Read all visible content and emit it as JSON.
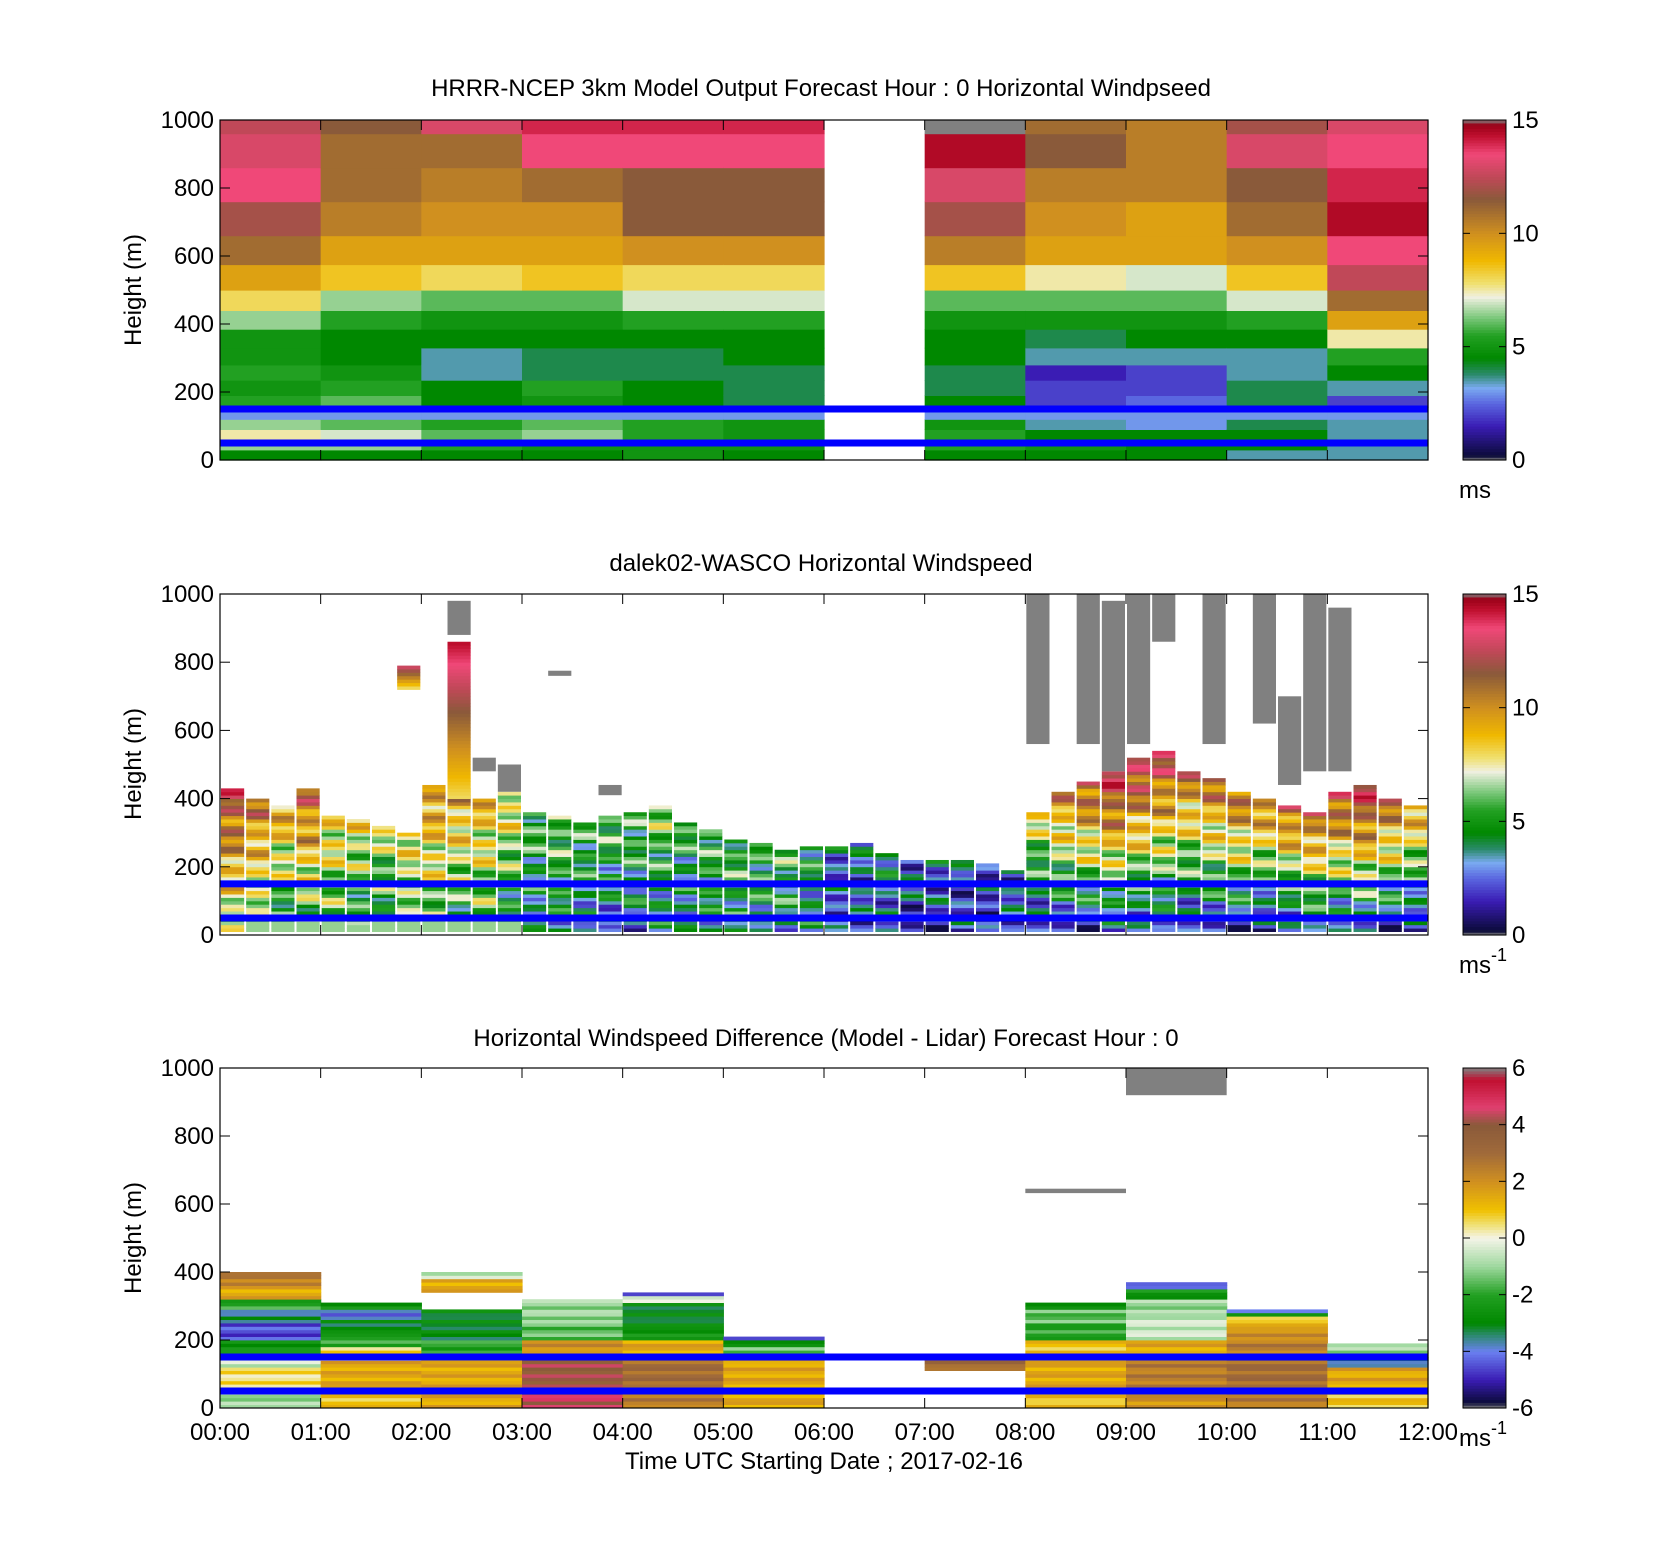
{
  "figure": {
    "xlabel": "Time UTC  Starting Date ; 2017-02-16",
    "x_ticks": [
      "00:00",
      "01:00",
      "02:00",
      "03:00",
      "04:00",
      "05:00",
      "06:00",
      "07:00",
      "08:00",
      "09:00",
      "10:00",
      "11:00",
      "12:00"
    ],
    "reference_lines_m": [
      50,
      150
    ],
    "reference_line_color": "#0000ff",
    "missing_data_color": "#808080"
  },
  "chart_data": [
    {
      "type": "heatmap",
      "title": "HRRR-NCEP 3km Model Output   Forecast Hour : 0 Horizontal Windpseed",
      "ylabel": "Height (m)",
      "ylim": [
        0,
        1000
      ],
      "y_ticks": [
        0,
        200,
        400,
        600,
        800,
        1000
      ],
      "colorbar": {
        "min": 0,
        "max": 15,
        "ticks": [
          0,
          5,
          10,
          15
        ],
        "unit": "ms",
        "unit_sup": ""
      },
      "x_hours_start": [
        0,
        1,
        2,
        3,
        4,
        5,
        7,
        8,
        9,
        10,
        11
      ],
      "rows_m": [
        0,
        30,
        60,
        90,
        120,
        155,
        190,
        235,
        280,
        330,
        385,
        440,
        500,
        575,
        660,
        760,
        860,
        960
      ],
      "columns": [
        {
          "h": 0,
          "values": [
            4.5,
            6.5,
            7.5,
            6.5,
            3.0,
            5.5,
            5.0,
            5.5,
            5.0,
            5.0,
            6.5,
            8.0,
            9.5,
            11.0,
            12.0,
            13.5,
            13.0,
            12.5
          ]
        },
        {
          "h": 1,
          "values": [
            4.5,
            6.5,
            7.0,
            6.0,
            3.0,
            6.0,
            5.5,
            5.0,
            4.5,
            4.5,
            5.5,
            6.5,
            8.5,
            9.5,
            10.5,
            11.0,
            11.0,
            11.5
          ]
        },
        {
          "h": 2,
          "values": [
            4.5,
            5.5,
            6.0,
            5.5,
            3.0,
            4.5,
            4.5,
            3.5,
            3.5,
            4.5,
            5.0,
            6.0,
            8.0,
            9.5,
            10.0,
            10.5,
            11.0,
            13.0
          ]
        },
        {
          "h": 3,
          "values": [
            4.5,
            5.0,
            6.5,
            6.0,
            3.0,
            5.0,
            5.5,
            4.0,
            4.0,
            4.5,
            5.0,
            6.0,
            8.5,
            9.5,
            10.0,
            11.0,
            13.5,
            14.0
          ]
        },
        {
          "h": 4,
          "values": [
            5.0,
            5.0,
            5.5,
            5.5,
            3.0,
            4.5,
            4.5,
            4.0,
            4.0,
            4.5,
            5.5,
            7.0,
            8.0,
            10.0,
            11.5,
            11.5,
            13.5,
            14.0
          ]
        },
        {
          "h": 5,
          "values": [
            4.5,
            5.0,
            5.0,
            5.0,
            3.0,
            4.0,
            4.0,
            4.0,
            4.5,
            4.5,
            5.5,
            7.0,
            8.0,
            10.0,
            11.5,
            11.5,
            13.5,
            14.0
          ]
        },
        {
          "h": 7,
          "values": [
            4.5,
            5.5,
            5.5,
            5.0,
            3.0,
            4.5,
            4.0,
            4.0,
            4.5,
            4.5,
            5.0,
            6.0,
            8.5,
            10.5,
            12.0,
            13.0,
            14.5,
            15.0
          ]
        },
        {
          "h": 8,
          "values": [
            4.5,
            5.0,
            4.5,
            3.5,
            3.0,
            2.0,
            2.0,
            1.5,
            3.5,
            4.0,
            5.0,
            6.0,
            7.5,
            9.5,
            10.0,
            10.5,
            11.5,
            11.0
          ]
        },
        {
          "h": 9,
          "values": [
            4.5,
            4.5,
            4.5,
            3.0,
            3.0,
            2.5,
            2.0,
            2.0,
            3.5,
            4.5,
            5.0,
            6.0,
            7.0,
            9.5,
            9.5,
            10.5,
            10.5,
            10.5
          ]
        },
        {
          "h": 10,
          "values": [
            3.5,
            4.5,
            4.5,
            4.0,
            3.0,
            4.0,
            4.0,
            3.5,
            3.5,
            4.5,
            5.5,
            7.0,
            8.5,
            10.0,
            11.0,
            11.5,
            13.0,
            12.0
          ]
        },
        {
          "h": 11,
          "values": [
            3.5,
            3.5,
            3.5,
            3.5,
            3.0,
            2.0,
            3.5,
            4.5,
            5.5,
            7.5,
            9.5,
            11.0,
            12.5,
            13.5,
            14.5,
            14.0,
            13.5,
            13.0
          ]
        }
      ]
    },
    {
      "type": "heatmap",
      "title": "dalek02-WASCO  Horizontal Windspeed",
      "ylabel": "Height (m)",
      "ylim": [
        0,
        1000
      ],
      "y_ticks": [
        0,
        200,
        400,
        600,
        800,
        1000
      ],
      "colorbar": {
        "min": 0,
        "max": 15,
        "ticks": [
          0,
          5,
          10,
          15
        ],
        "unit": "ms",
        "unit_sup": "-1"
      },
      "column_hours": [
        0.0,
        0.25,
        0.5,
        0.75,
        1.0,
        1.25,
        1.5,
        1.75,
        2.0,
        2.25,
        2.5,
        2.75,
        3.0,
        3.25,
        3.5,
        3.75,
        4.0,
        4.25,
        4.5,
        4.75,
        5.0,
        5.25,
        5.5,
        5.75,
        6.0,
        6.25,
        6.5,
        6.75,
        7.0,
        7.25,
        7.5,
        7.75,
        8.0,
        8.25,
        8.5,
        8.75,
        9.0,
        9.25,
        9.5,
        9.75,
        10.0,
        10.25,
        10.5,
        10.75,
        11.0,
        11.25,
        11.5,
        11.75
      ],
      "column_width_h": 0.25,
      "top_m": [
        430,
        400,
        380,
        430,
        350,
        340,
        320,
        300,
        440,
        430,
        400,
        420,
        360,
        350,
        330,
        350,
        360,
        380,
        330,
        310,
        280,
        270,
        250,
        260,
        260,
        270,
        240,
        220,
        220,
        220,
        210,
        190,
        360,
        420,
        450,
        480,
        520,
        540,
        480,
        460,
        420,
        400,
        380,
        360,
        420,
        440,
        400,
        380
      ],
      "base_m": [
        6,
        5,
        4,
        5,
        5,
        4.5,
        4,
        5,
        5,
        4.5,
        5,
        4,
        3,
        3.5,
        3,
        3,
        3,
        3.5,
        3,
        3.5,
        4,
        4,
        4,
        3.5,
        2,
        2,
        2.5,
        2,
        2,
        2,
        1.5,
        2,
        1.5,
        2,
        2,
        2.5,
        2,
        2,
        1.5,
        2,
        2,
        1.5,
        2,
        2.5,
        2,
        2.5,
        2,
        2
      ],
      "grad_per_100m": [
        1.5,
        1.5,
        1.5,
        1.5,
        1.0,
        1.0,
        1.0,
        1.0,
        1.2,
        1.2,
        1.0,
        1.0,
        0.8,
        0.8,
        0.8,
        0.8,
        0.8,
        0.8,
        0.7,
        0.7,
        0.6,
        0.6,
        0.6,
        0.6,
        0.5,
        0.5,
        0.5,
        0.5,
        0.5,
        0.5,
        0.5,
        0.5,
        1.8,
        2.0,
        2.2,
        2.3,
        2.2,
        2.0,
        2.0,
        2.0,
        2.2,
        2.3,
        2.5,
        2.5,
        2.5,
        2.5,
        2.3,
        2.0
      ],
      "gust_spikes": [
        {
          "h": 2.25,
          "from_m": 400,
          "to_m": 860,
          "peak": 14.5
        },
        {
          "h": 1.75,
          "from_m": 720,
          "to_m": 790,
          "peak": 13.5
        }
      ],
      "missing_segments": [
        {
          "h": 2.25,
          "from_m": 880,
          "to_m": 980
        },
        {
          "h": 2.5,
          "from_m": 480,
          "to_m": 520
        },
        {
          "h": 2.75,
          "from_m": 420,
          "to_m": 500
        },
        {
          "h": 3.25,
          "from_m": 760,
          "to_m": 775
        },
        {
          "h": 3.75,
          "from_m": 410,
          "to_m": 440
        },
        {
          "h": 8.0,
          "from_m": 560,
          "to_m": 1000
        },
        {
          "h": 8.5,
          "from_m": 560,
          "to_m": 1000
        },
        {
          "h": 8.75,
          "from_m": 480,
          "to_m": 980
        },
        {
          "h": 9.0,
          "from_m": 560,
          "to_m": 1000
        },
        {
          "h": 9.25,
          "from_m": 860,
          "to_m": 1000
        },
        {
          "h": 9.75,
          "from_m": 560,
          "to_m": 1000
        },
        {
          "h": 10.25,
          "from_m": 620,
          "to_m": 1000
        },
        {
          "h": 10.5,
          "from_m": 440,
          "to_m": 700
        },
        {
          "h": 10.75,
          "from_m": 480,
          "to_m": 1000
        },
        {
          "h": 11.0,
          "from_m": 480,
          "to_m": 960
        }
      ]
    },
    {
      "type": "heatmap",
      "title": "Horizontal Windspeed Difference (Model - Lidar) Forecast Hour : 0",
      "ylabel": "Height (m)",
      "ylim": [
        0,
        1000
      ],
      "y_ticks": [
        0,
        200,
        400,
        600,
        800,
        1000
      ],
      "colorbar": {
        "min": -6,
        "max": 6,
        "ticks": [
          -6,
          -4,
          -2,
          0,
          2,
          4,
          6
        ],
        "unit": "ms",
        "unit_sup": "-1"
      },
      "blocks": [
        {
          "h": 0,
          "top_m": 400,
          "segments": [
            [
              0,
              60,
              -1
            ],
            [
              60,
              120,
              0.5
            ],
            [
              120,
              160,
              -0.5
            ],
            [
              160,
              200,
              -2.5
            ],
            [
              200,
              250,
              -4.5
            ],
            [
              250,
              290,
              -3.5
            ],
            [
              290,
              320,
              -2
            ],
            [
              320,
              360,
              1.5
            ],
            [
              360,
              400,
              2.5
            ]
          ]
        },
        {
          "h": 1,
          "top_m": 310,
          "segments": [
            [
              0,
              60,
              1
            ],
            [
              60,
              140,
              1.5
            ],
            [
              140,
              180,
              0.5
            ],
            [
              180,
              220,
              -2
            ],
            [
              220,
              260,
              -3
            ],
            [
              260,
              290,
              -4
            ],
            [
              290,
              310,
              -2.5
            ]
          ]
        },
        {
          "h": 2,
          "top_m": 400,
          "segments": [
            [
              0,
              60,
              1.5
            ],
            [
              60,
              150,
              1.5
            ],
            [
              150,
              200,
              -2
            ],
            [
              200,
              290,
              -3
            ],
            [
              340,
              380,
              1.5
            ],
            [
              380,
              400,
              -0.5
            ]
          ]
        },
        {
          "h": 3,
          "top_m": 320,
          "segments": [
            [
              0,
              60,
              4.5
            ],
            [
              60,
              150,
              4
            ],
            [
              150,
              200,
              2
            ],
            [
              200,
              250,
              -1.5
            ],
            [
              250,
              320,
              -1
            ]
          ]
        },
        {
          "h": 4,
          "top_m": 340,
          "segments": [
            [
              0,
              60,
              2.5
            ],
            [
              60,
              150,
              3
            ],
            [
              150,
              200,
              1.5
            ],
            [
              200,
              240,
              -2.5
            ],
            [
              240,
              310,
              -3
            ],
            [
              310,
              330,
              0
            ],
            [
              330,
              340,
              -5
            ]
          ]
        },
        {
          "h": 5,
          "top_m": 210,
          "segments": [
            [
              0,
              60,
              1.5
            ],
            [
              60,
              150,
              1.5
            ],
            [
              150,
              180,
              -1.5
            ],
            [
              180,
              200,
              -2.5
            ],
            [
              200,
              210,
              -5
            ]
          ]
        },
        {
          "h": 7,
          "top_m": 160,
          "segments": [
            [
              110,
              160,
              3
            ]
          ]
        },
        {
          "h": 8,
          "top_m": 310,
          "segments": [
            [
              0,
              60,
              1
            ],
            [
              60,
              150,
              1.5
            ],
            [
              150,
              200,
              1
            ],
            [
              200,
              250,
              -2
            ],
            [
              250,
              290,
              -1.5
            ],
            [
              290,
              310,
              -2.5
            ]
          ]
        },
        {
          "h": 9,
          "top_m": 370,
          "segments": [
            [
              0,
              60,
              2
            ],
            [
              60,
              150,
              2.5
            ],
            [
              150,
              200,
              1.5
            ],
            [
              200,
              270,
              -0.5
            ],
            [
              270,
              320,
              -1
            ],
            [
              320,
              350,
              -2.5
            ],
            [
              350,
              370,
              -4
            ]
          ]
        },
        {
          "h": 10,
          "top_m": 290,
          "segments": [
            [
              0,
              60,
              2.5
            ],
            [
              60,
              150,
              3
            ],
            [
              150,
              200,
              2.5
            ],
            [
              200,
              240,
              2
            ],
            [
              240,
              270,
              1
            ],
            [
              270,
              280,
              -3
            ],
            [
              280,
              290,
              -4
            ]
          ]
        },
        {
          "h": 11,
          "top_m": 190,
          "segments": [
            [
              0,
              60,
              1
            ],
            [
              60,
              120,
              1.5
            ],
            [
              120,
              150,
              -3.5
            ],
            [
              150,
              170,
              -1
            ],
            [
              170,
              190,
              -1
            ]
          ]
        }
      ],
      "missing_segments": [
        {
          "h_from": 8,
          "h_to": 9,
          "from_m": 632,
          "to_m": 645
        },
        {
          "h_from": 9,
          "h_to": 10,
          "from_m": 920,
          "to_m": 1000
        }
      ]
    }
  ],
  "colormaps": {
    "speed": [
      [
        0,
        "#808080"
      ],
      [
        0.2,
        "#0b0b3a"
      ],
      [
        1.5,
        "#3a1cb4"
      ],
      [
        2.5,
        "#5a66e0"
      ],
      [
        3.2,
        "#7aaaf0"
      ],
      [
        3.8,
        "#2a8a6a"
      ],
      [
        4.5,
        "#008800"
      ],
      [
        5.5,
        "#22a022"
      ],
      [
        6.3,
        "#7cc87c"
      ],
      [
        7.2,
        "#f0f0e0"
      ],
      [
        7.8,
        "#f0e070"
      ],
      [
        8.8,
        "#f0b800"
      ],
      [
        10,
        "#d0901f"
      ],
      [
        11.5,
        "#8a5a3a"
      ],
      [
        12.5,
        "#c04858"
      ],
      [
        13.5,
        "#f04878"
      ],
      [
        14.3,
        "#c01030"
      ],
      [
        14.8,
        "#9a0018"
      ],
      [
        15,
        "#808080"
      ]
    ],
    "diff": [
      [
        -6,
        "#808080"
      ],
      [
        -5.8,
        "#0b0b3a"
      ],
      [
        -5,
        "#3a1cb4"
      ],
      [
        -4,
        "#6a80f0"
      ],
      [
        -3.4,
        "#2a8a6a"
      ],
      [
        -3,
        "#008800"
      ],
      [
        -2,
        "#22a022"
      ],
      [
        -1,
        "#9ed89e"
      ],
      [
        0,
        "#f4f4e8"
      ],
      [
        0.5,
        "#f0e070"
      ],
      [
        1,
        "#f0c000"
      ],
      [
        2,
        "#d09020"
      ],
      [
        3,
        "#a06a3a"
      ],
      [
        4,
        "#8a5a3a"
      ],
      [
        4.6,
        "#e04070"
      ],
      [
        5.6,
        "#c01030"
      ],
      [
        6,
        "#808080"
      ]
    ]
  }
}
